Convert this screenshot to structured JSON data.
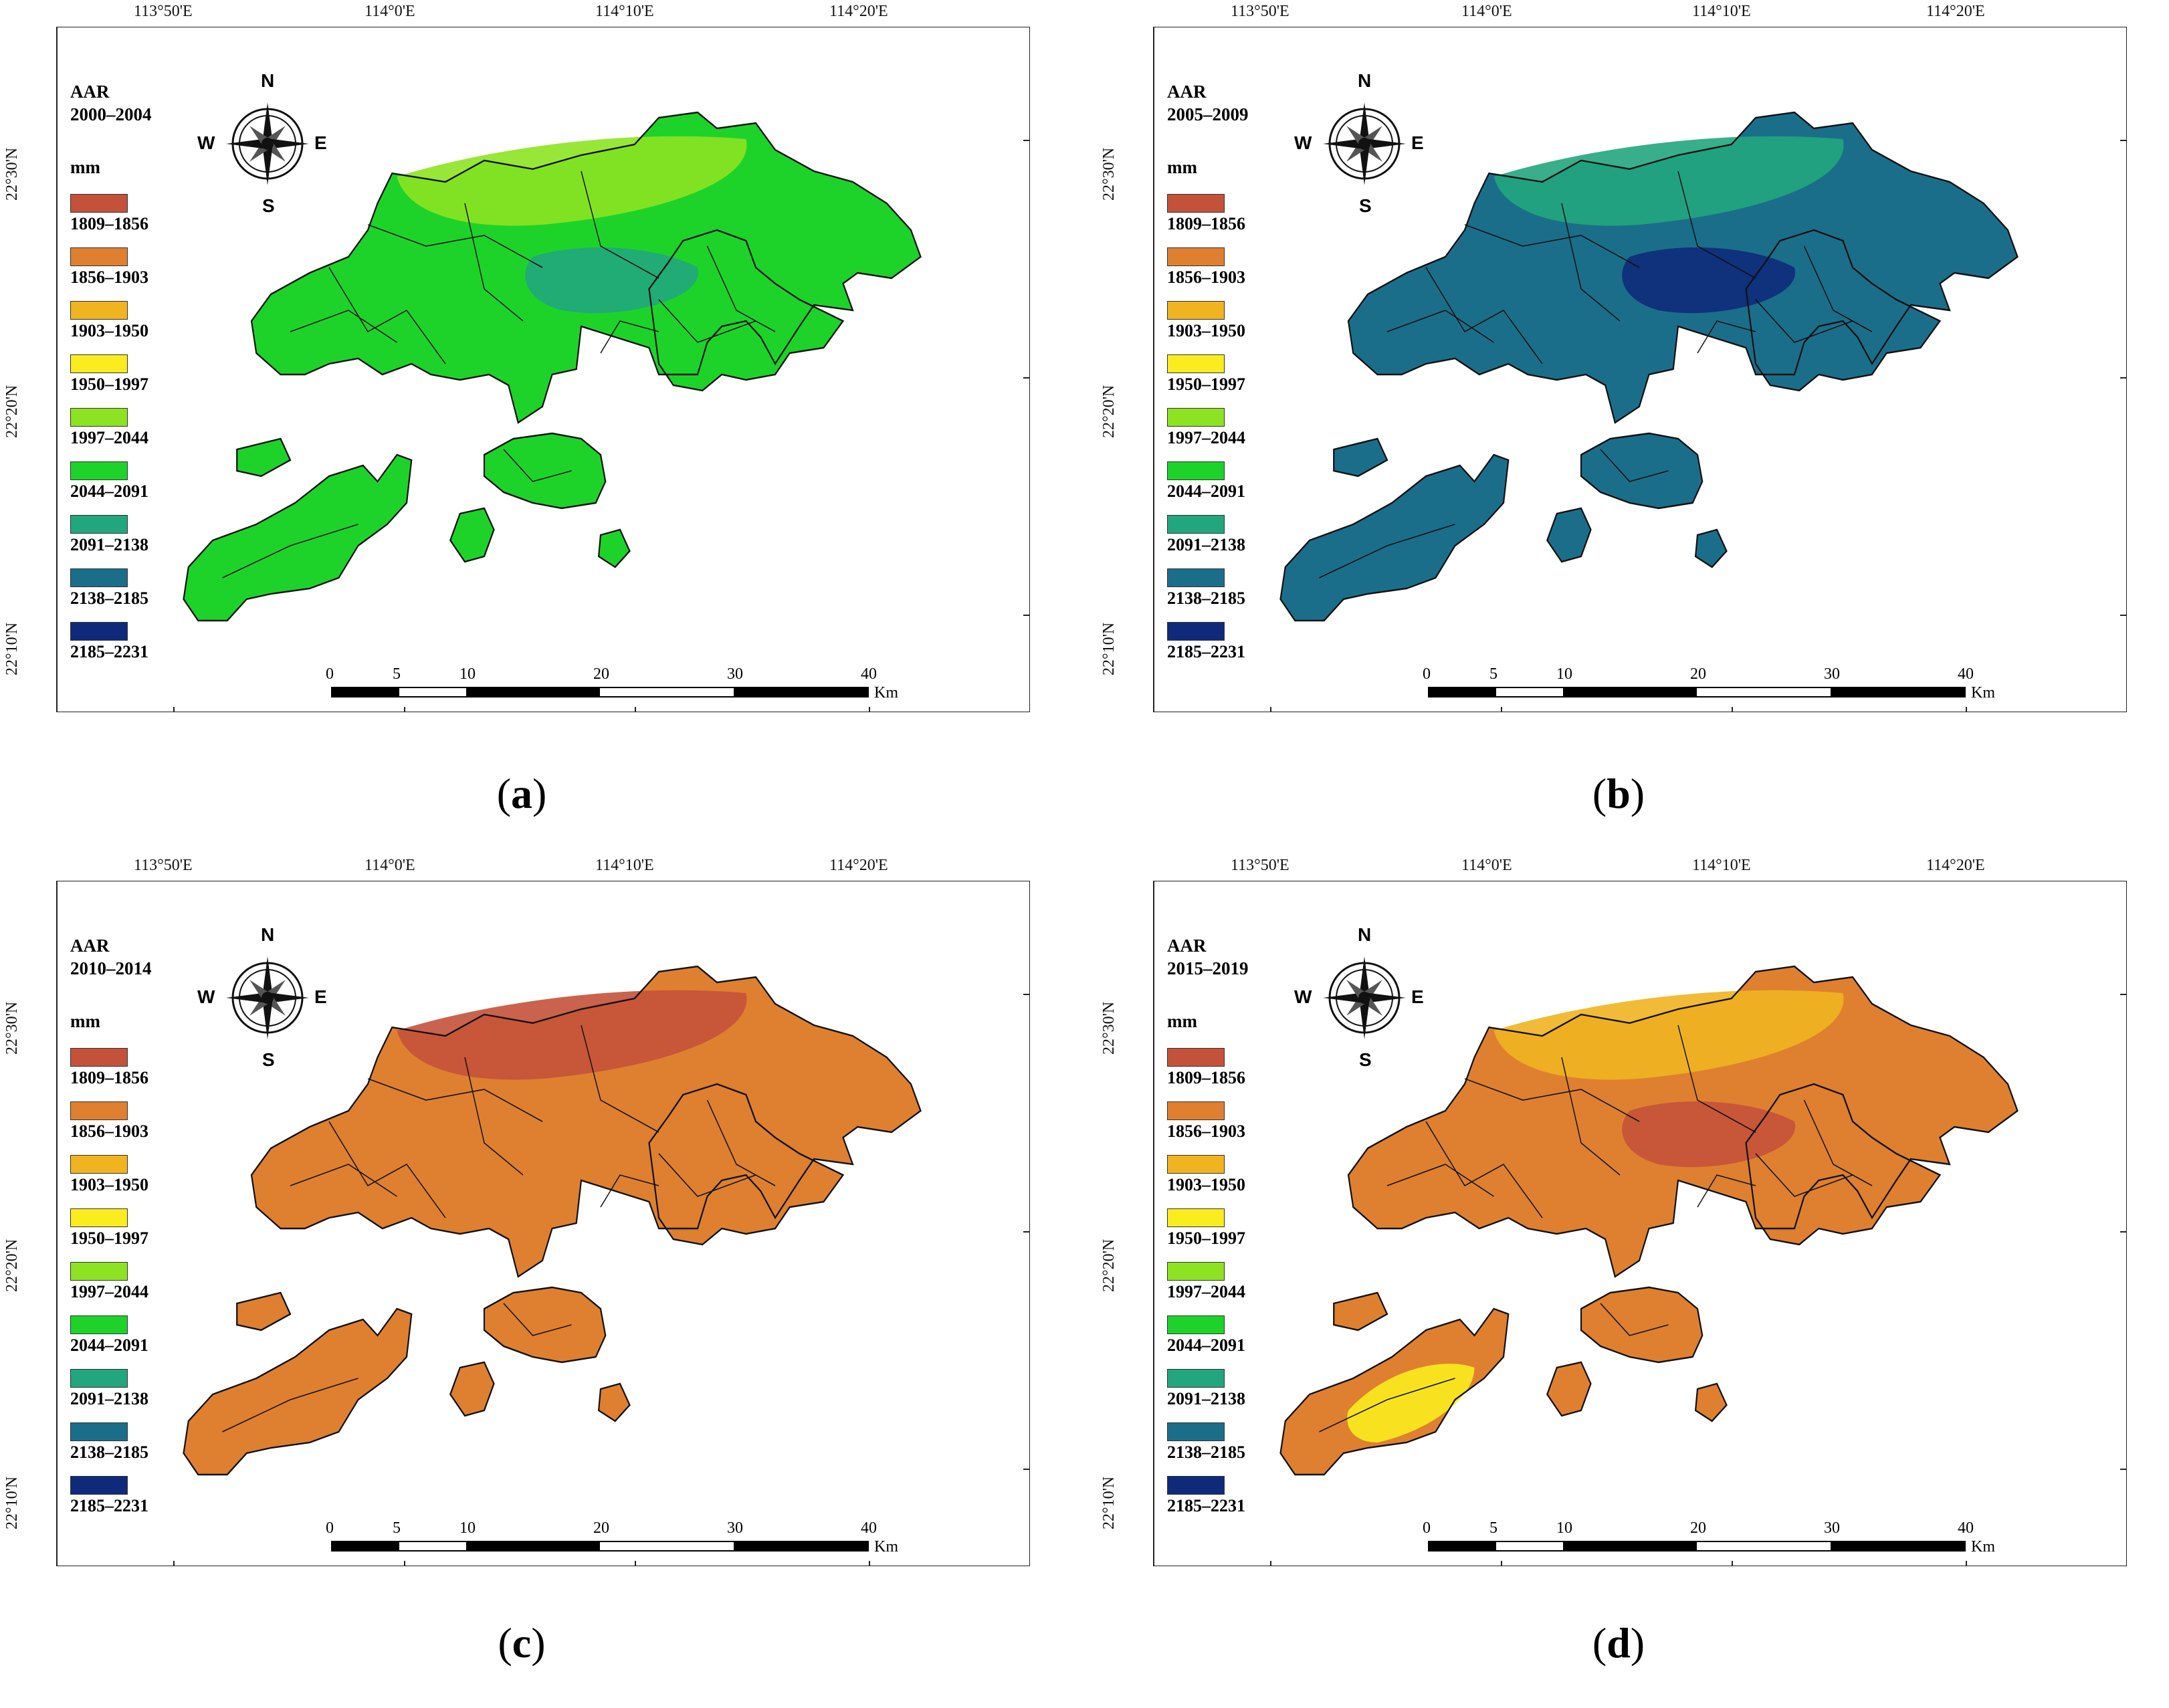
{
  "figure": {
    "lon_labels": [
      "113°50'E",
      "114°0'E",
      "114°10'E",
      "114°20'E"
    ],
    "lat_labels": [
      "22°30'N",
      "22°20'N",
      "22°10'N"
    ],
    "legend_unit": "mm",
    "legend_title_prefix": "AAR",
    "compass": {
      "n": "N",
      "s": "S",
      "e": "E",
      "w": "W"
    },
    "scale": {
      "ticks": [
        "0",
        "5",
        "10",
        "20",
        "30",
        "40"
      ],
      "unit": "Km"
    },
    "classes": [
      {
        "label": "1809–1856",
        "color": "#c4523a"
      },
      {
        "label": "1856–1903",
        "color": "#de8030"
      },
      {
        "label": "1903–1950",
        "color": "#f0b421"
      },
      {
        "label": "1950–1997",
        "color": "#fbec1f"
      },
      {
        "label": "1997–2044",
        "color": "#8de322"
      },
      {
        "label": "2044–2091",
        "color": "#1dd32a"
      },
      {
        "label": "2091–2138",
        "color": "#22a67d"
      },
      {
        "label": "2138–2185",
        "color": "#1b6e8a"
      },
      {
        "label": "2185–2231",
        "color": "#0f2a7a"
      }
    ],
    "panels": [
      {
        "letter": "a",
        "period": "2000–2004",
        "base": "#1dd32a",
        "zones": [
          "#8de322",
          "#22a67d"
        ]
      },
      {
        "letter": "b",
        "period": "2005–2009",
        "base": "#1b6e8a",
        "zones": [
          "#22a67d",
          "#0f2a7a"
        ]
      },
      {
        "letter": "c",
        "period": "2010–2014",
        "base": "#de8030",
        "zones": [
          "#c4523a",
          "#de8030"
        ]
      },
      {
        "letter": "d",
        "period": "2015–2019",
        "base": "#de8030",
        "zones": [
          "#f0b421",
          "#c4523a",
          "#fbec1f"
        ]
      }
    ]
  }
}
